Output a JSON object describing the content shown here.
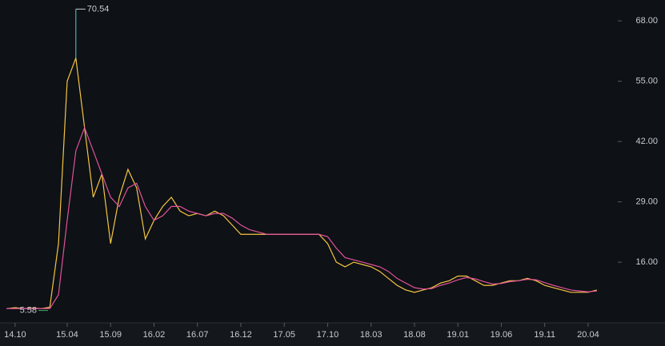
{
  "chart_data": {
    "type": "line",
    "categories": [
      null,
      "14.10",
      null,
      null,
      null,
      null,
      null,
      "15.04",
      null,
      null,
      null,
      null,
      "15.09",
      null,
      null,
      null,
      null,
      "16.02",
      null,
      null,
      null,
      null,
      "16.07",
      null,
      null,
      null,
      null,
      "16.12",
      null,
      null,
      null,
      null,
      "17.05",
      null,
      null,
      null,
      null,
      "17.10",
      null,
      null,
      null,
      null,
      "18.03",
      null,
      null,
      null,
      null,
      "18.08",
      null,
      null,
      null,
      null,
      "19.01",
      null,
      null,
      null,
      null,
      "19.06",
      null,
      null,
      null,
      null,
      "19.11",
      null,
      null,
      null,
      null,
      "20.04",
      null
    ],
    "series": [
      {
        "color": "#f5c542",
        "values": [
          6,
          6.2,
          6,
          6.1,
          6,
          6.3,
          20,
          55,
          60,
          45,
          30,
          35,
          20,
          30,
          36,
          32,
          21,
          25,
          28,
          30,
          27,
          26,
          26.5,
          26,
          27,
          26,
          24,
          22,
          22,
          22,
          22,
          22,
          22,
          22,
          22,
          22,
          22,
          20,
          16,
          15,
          16,
          15.5,
          15,
          14,
          12.5,
          11,
          10,
          9.5,
          10,
          10.5,
          11.5,
          12,
          13,
          13,
          12,
          11,
          11,
          11.5,
          12,
          12,
          12.5,
          12,
          11,
          10.5,
          10,
          9.5,
          9.5,
          9.5,
          10
        ]
      },
      {
        "color": "#e0529c",
        "values": [
          6,
          6,
          6,
          6,
          6,
          6,
          9,
          25,
          40,
          45,
          40,
          35,
          30,
          28,
          32,
          33,
          28,
          25,
          26,
          28,
          28,
          27,
          26.5,
          26,
          26.5,
          26.5,
          25.5,
          24,
          23,
          22.5,
          22,
          22,
          22,
          22,
          22,
          22,
          22,
          21.5,
          19,
          17,
          16.5,
          16,
          15.5,
          15,
          14,
          12.5,
          11.5,
          10.5,
          10.2,
          10.3,
          11,
          11.5,
          12.2,
          12.7,
          12.4,
          11.8,
          11.3,
          11.4,
          11.8,
          12,
          12.3,
          12.2,
          11.6,
          11,
          10.5,
          10,
          9.8,
          9.6,
          9.8
        ]
      }
    ],
    "ylim": [
      3.1,
      72.5
    ],
    "yticks": [
      {
        "value": 16,
        "label": "16.00"
      },
      {
        "value": 29,
        "label": "29.00"
      },
      {
        "value": 42,
        "label": "42.00"
      },
      {
        "value": 55,
        "label": "55.00"
      },
      {
        "value": 68,
        "label": "68.00"
      }
    ],
    "high": 70.54,
    "low": 5.58
  }
}
